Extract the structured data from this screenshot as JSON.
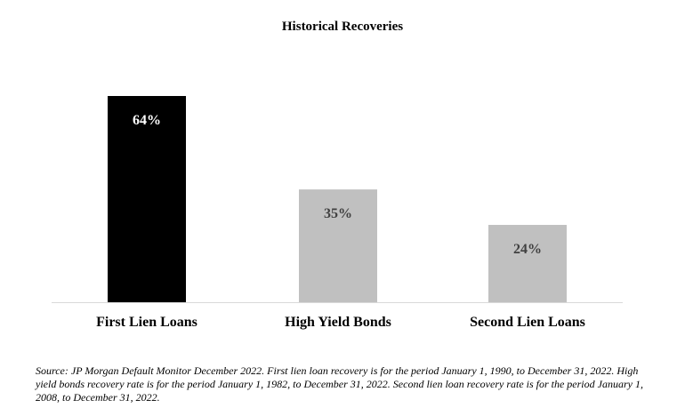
{
  "chart_data": {
    "type": "bar",
    "title": "Historical Recoveries",
    "xlabel": "",
    "ylabel": "",
    "ylim": [
      0,
      70
    ],
    "grid": false,
    "categories": [
      "First Lien Loans",
      "High Yield Bonds",
      "Second Lien Loans"
    ],
    "values": [
      64,
      35,
      24
    ],
    "value_labels": [
      "64%",
      "35%",
      "24%"
    ],
    "bar_colors": [
      "#000000",
      "#c0c0c0",
      "#c0c0c0"
    ],
    "label_colors": [
      "#ffffff",
      "#404040",
      "#404040"
    ]
  },
  "footnote": "Source: JP Morgan Default Monitor December 2022. First lien loan recovery is for the period January 1, 1990, to December 31, 2022. High yield bonds recovery rate is for the period January 1, 1982, to December 31, 2022. Second lien loan recovery rate is for the period January 1, 2008, to December 31, 2022."
}
